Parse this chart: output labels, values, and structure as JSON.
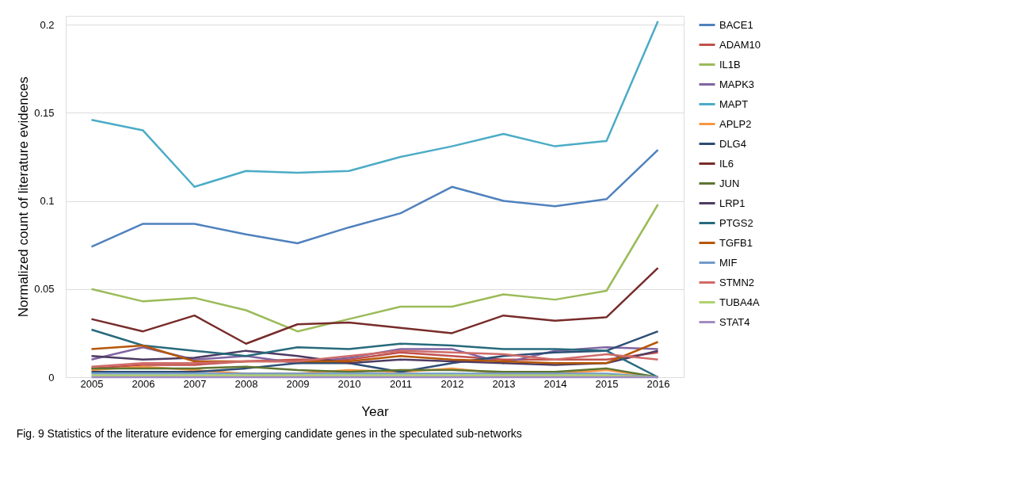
{
  "chart_data": {
    "type": "line",
    "xlabel": "Year",
    "ylabel": "Normalized count of literature evidences",
    "categories": [
      "2005",
      "2006",
      "2007",
      "2008",
      "2009",
      "2010",
      "2011",
      "2012",
      "2013",
      "2014",
      "2015",
      "2016"
    ],
    "ylim": [
      0,
      0.205
    ],
    "yticks": [
      0,
      0.05,
      0.1,
      0.15,
      0.2
    ],
    "grid": "y",
    "legend": "right",
    "marker": "none",
    "line_style": "solid",
    "annotations": [
      "Fig. 9 Statistics of the literature evidence for emerging candidate genes in the speculated sub-networks"
    ],
    "series": [
      {
        "name": "BACE1",
        "color": "#4f81bd",
        "values": [
          0.074,
          0.087,
          0.087,
          0.081,
          0.076,
          0.085,
          0.093,
          0.108,
          0.1,
          0.097,
          0.101,
          0.129
        ]
      },
      {
        "name": "ADAM10",
        "color": "#c0504d",
        "values": [
          0.005,
          0.007,
          0.007,
          0.009,
          0.01,
          0.01,
          0.014,
          0.012,
          0.01,
          0.01,
          0.01,
          0.014
        ]
      },
      {
        "name": "IL1B",
        "color": "#9bbb59",
        "values": [
          0.05,
          0.043,
          0.045,
          0.038,
          0.026,
          0.033,
          0.04,
          0.04,
          0.047,
          0.044,
          0.049,
          0.098
        ]
      },
      {
        "name": "MAPK3",
        "color": "#8064a2",
        "values": [
          0.01,
          0.017,
          0.01,
          0.012,
          0.008,
          0.011,
          0.016,
          0.016,
          0.008,
          0.015,
          0.017,
          0.016
        ]
      },
      {
        "name": "MAPT",
        "color": "#4bacc6",
        "values": [
          0.146,
          0.14,
          0.108,
          0.117,
          0.116,
          0.117,
          0.125,
          0.131,
          0.138,
          0.131,
          0.134,
          0.202
        ]
      },
      {
        "name": "APLP2",
        "color": "#f79646",
        "values": [
          0.004,
          0.006,
          0.004,
          0.002,
          0.002,
          0.004,
          0.003,
          0.005,
          0.002,
          0.002,
          0.004,
          0.0
        ]
      },
      {
        "name": "DLG4",
        "color": "#2c4d75",
        "values": [
          0.003,
          0.003,
          0.003,
          0.005,
          0.008,
          0.008,
          0.003,
          0.008,
          0.012,
          0.014,
          0.015,
          0.026
        ]
      },
      {
        "name": "IL6",
        "color": "#772c2a",
        "values": [
          0.033,
          0.026,
          0.035,
          0.019,
          0.03,
          0.031,
          0.028,
          0.025,
          0.035,
          0.032,
          0.034,
          0.062
        ]
      },
      {
        "name": "JUN",
        "color": "#5f7530",
        "values": [
          0.005,
          0.005,
          0.005,
          0.006,
          0.004,
          0.003,
          0.004,
          0.004,
          0.003,
          0.003,
          0.005,
          0.0
        ]
      },
      {
        "name": "LRP1",
        "color": "#4d3b62",
        "values": [
          0.012,
          0.01,
          0.011,
          0.015,
          0.012,
          0.008,
          0.01,
          0.009,
          0.008,
          0.007,
          0.008,
          0.015
        ]
      },
      {
        "name": "PTGS2",
        "color": "#276a7c",
        "values": [
          0.027,
          0.018,
          0.015,
          0.012,
          0.017,
          0.016,
          0.019,
          0.018,
          0.016,
          0.016,
          0.015,
          0.0
        ]
      },
      {
        "name": "TGFB1",
        "color": "#b65708",
        "values": [
          0.016,
          0.018,
          0.009,
          0.009,
          0.009,
          0.009,
          0.012,
          0.01,
          0.009,
          0.008,
          0.008,
          0.02
        ]
      },
      {
        "name": "MIF",
        "color": "#729aca",
        "values": [
          0.002,
          0.002,
          0.002,
          0.002,
          0.002,
          0.002,
          0.002,
          0.002,
          0.002,
          0.002,
          0.002,
          0.0
        ]
      },
      {
        "name": "STMN2",
        "color": "#d06b69",
        "values": [
          0.006,
          0.008,
          0.008,
          0.009,
          0.009,
          0.012,
          0.015,
          0.014,
          0.013,
          0.01,
          0.013,
          0.01
        ]
      },
      {
        "name": "TUBA4A",
        "color": "#afd26f",
        "values": [
          0.001,
          0.001,
          0.001,
          0.001,
          0.001,
          0.001,
          0.001,
          0.001,
          0.001,
          0.001,
          0.001,
          0.0
        ]
      },
      {
        "name": "STAT4",
        "color": "#a08cc0",
        "values": [
          0.0,
          0.0,
          0.0,
          0.0,
          0.0,
          0.0,
          0.0,
          0.0,
          0.0,
          0.0,
          0.0,
          0.0
        ]
      }
    ]
  }
}
